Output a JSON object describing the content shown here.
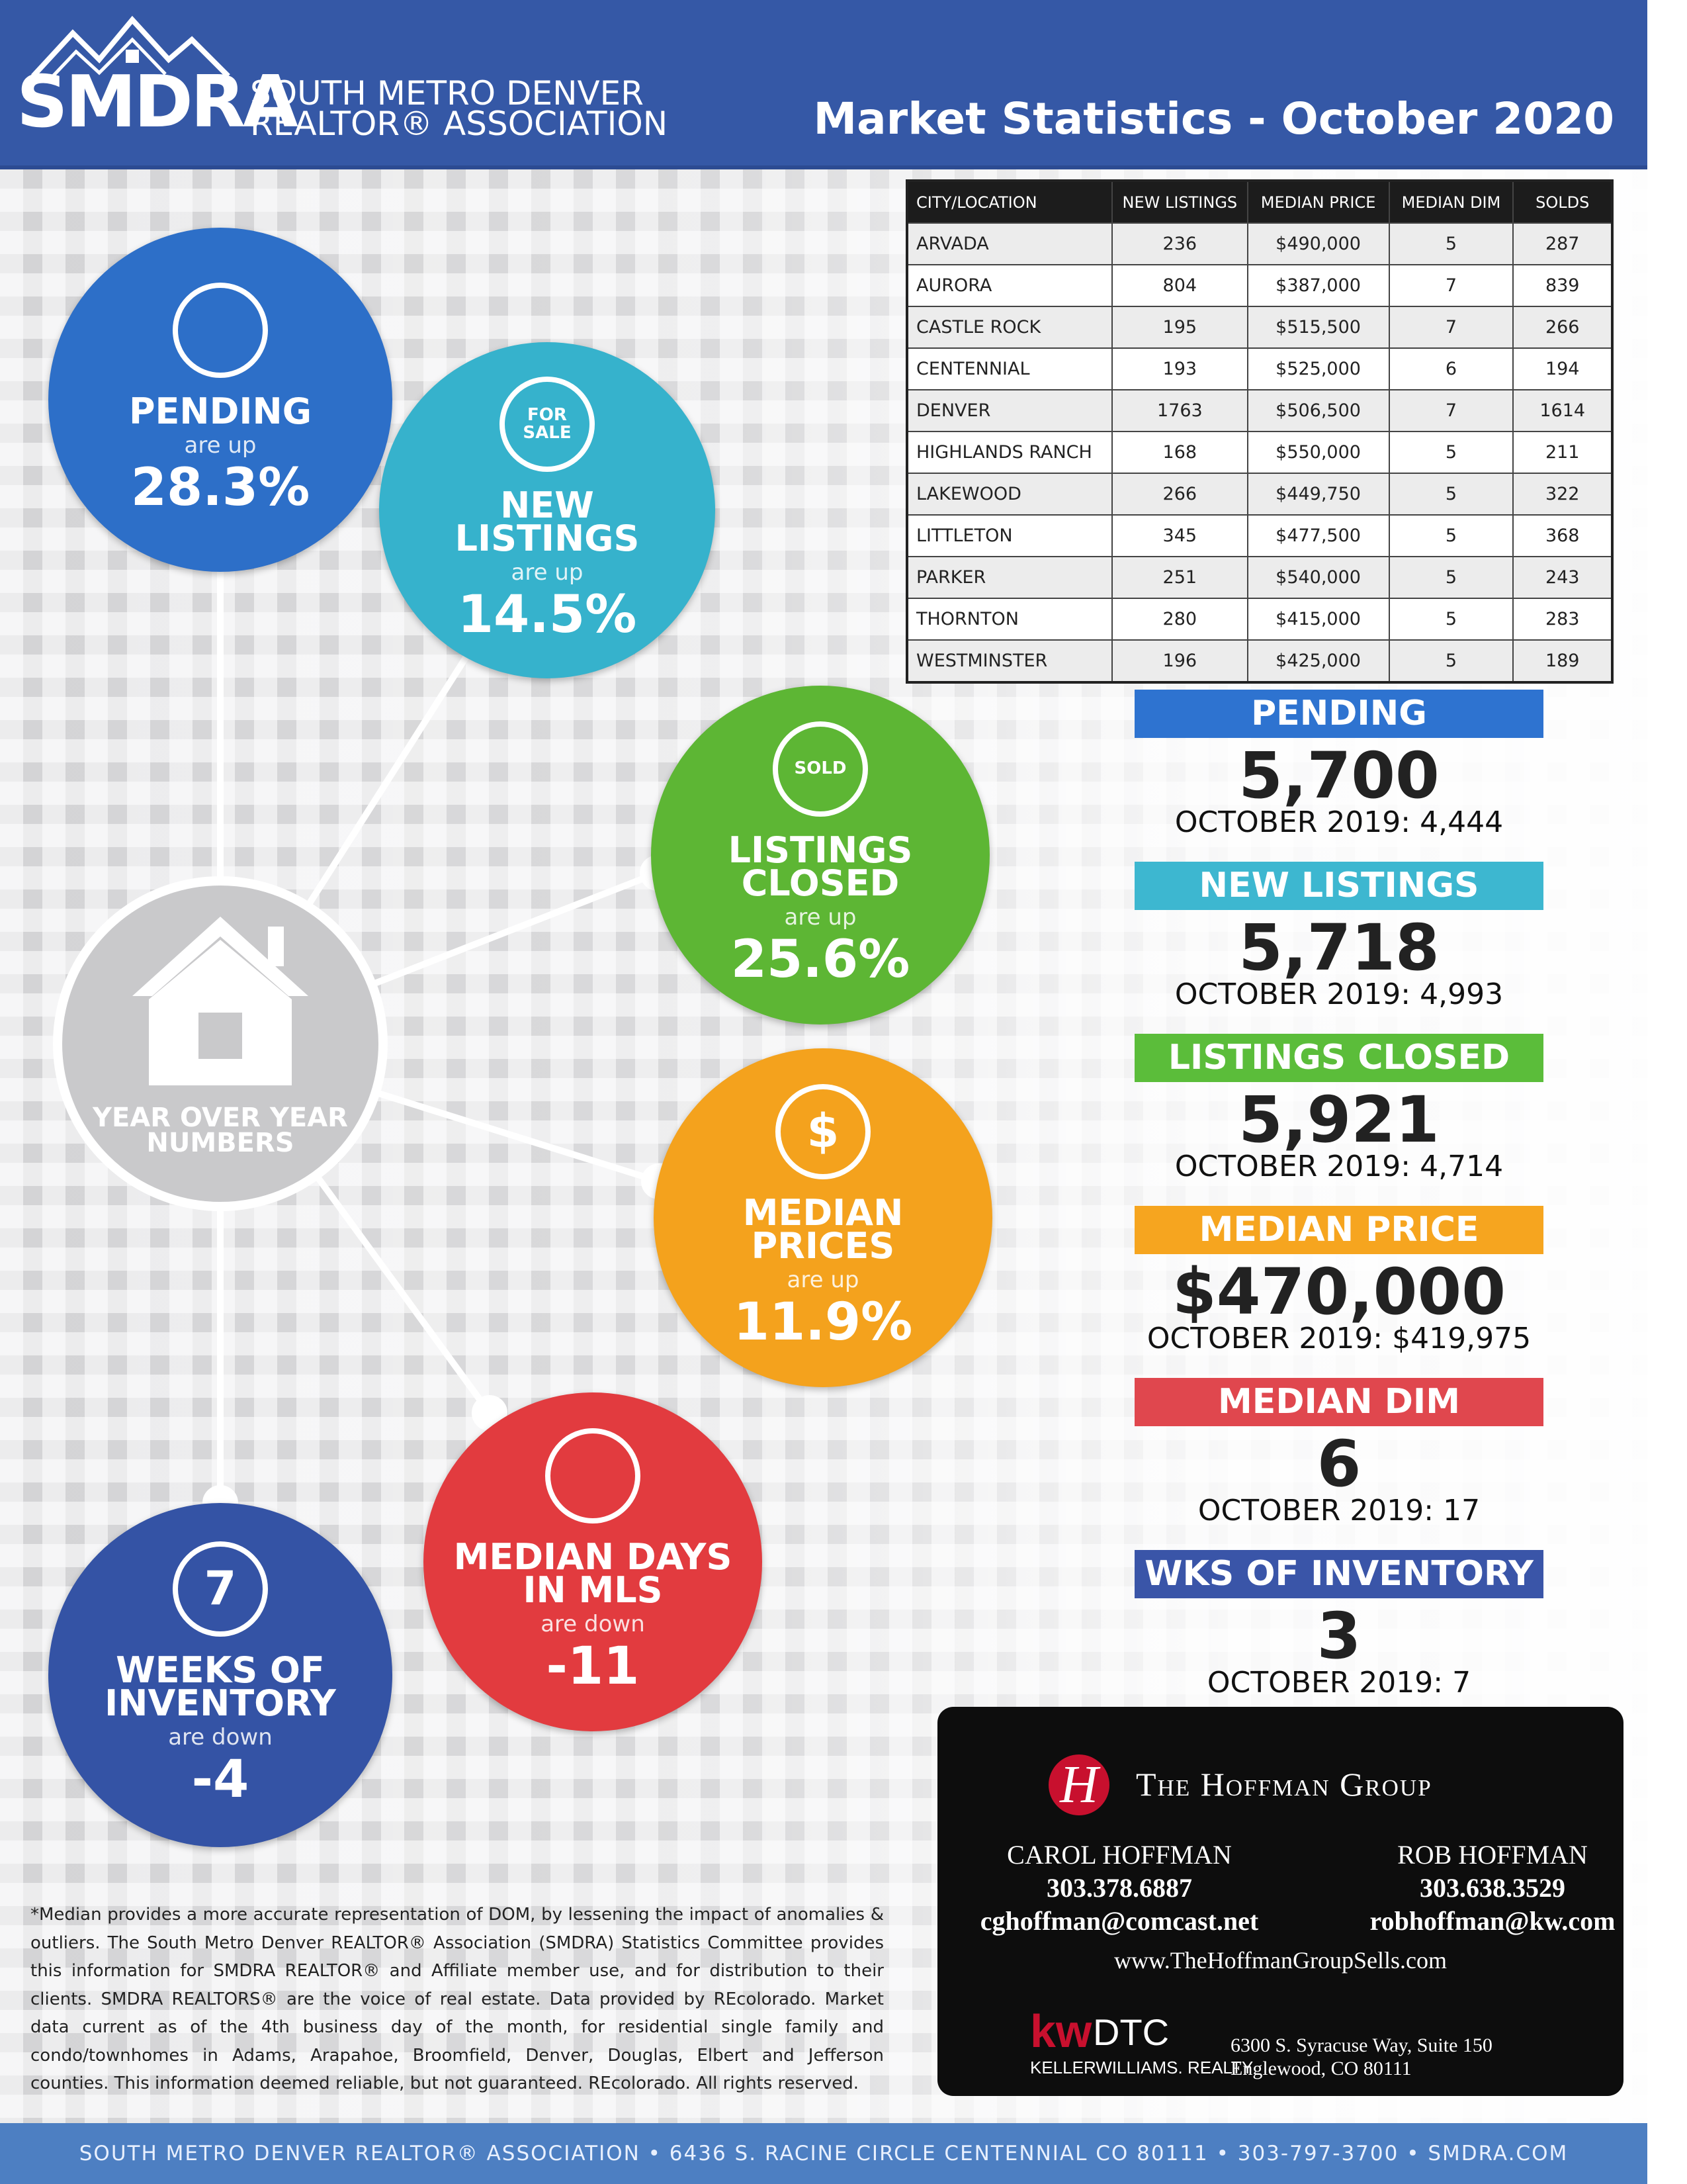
{
  "header": {
    "logo": "SMDRA",
    "org_line1": "SOUTH METRO DENVER",
    "org_line2": "REALTOR® ASSOCIATION",
    "title": "Market Statistics - October 2020"
  },
  "hub": {
    "lines": [
      "YEAR OVER YEAR",
      "NUMBERS"
    ]
  },
  "circles": [
    {
      "icon_text": [],
      "label_lines": [
        "PENDING"
      ],
      "direction": "are up",
      "change": "28.3%"
    },
    {
      "icon_text": [
        "FOR",
        "SALE"
      ],
      "label_lines": [
        "NEW",
        "LISTINGS"
      ],
      "direction": "are up",
      "change": "14.5%"
    },
    {
      "icon_text": [
        "SOLD"
      ],
      "label_lines": [
        "LISTINGS",
        "CLOSED"
      ],
      "direction": "are up",
      "change": "25.6%"
    },
    {
      "icon_text": [
        "$"
      ],
      "label_lines": [
        "MEDIAN",
        "PRICES"
      ],
      "direction": "are up",
      "change": "11.9%"
    },
    {
      "icon_text": [],
      "label_lines": [
        "MEDIAN DAYS",
        "IN MLS"
      ],
      "direction": "are down",
      "change": "-11"
    },
    {
      "icon_text": [
        "7"
      ],
      "label_lines": [
        "WEEKS OF",
        "INVENTORY"
      ],
      "direction": "are down",
      "change": "-4"
    }
  ],
  "table": {
    "columns": [
      "CITY/LOCATION",
      "NEW LISTINGS",
      "MEDIAN PRICE",
      "MEDIAN DIM",
      "SOLDS"
    ],
    "rows": [
      [
        "ARVADA",
        "236",
        "$490,000",
        "5",
        "287"
      ],
      [
        "AURORA",
        "804",
        "$387,000",
        "7",
        "839"
      ],
      [
        "CASTLE ROCK",
        "195",
        "$515,500",
        "7",
        "266"
      ],
      [
        "CENTENNIAL",
        "193",
        "$525,000",
        "6",
        "194"
      ],
      [
        "DENVER",
        "1763",
        "$506,500",
        "7",
        "1614"
      ],
      [
        "HIGHLANDS RANCH",
        "168",
        "$550,000",
        "5",
        "211"
      ],
      [
        "LAKEWOOD",
        "266",
        "$449,750",
        "5",
        "322"
      ],
      [
        "LITTLETON",
        "345",
        "$477,500",
        "5",
        "368"
      ],
      [
        "PARKER",
        "251",
        "$540,000",
        "5",
        "243"
      ],
      [
        "THORNTON",
        "280",
        "$415,000",
        "5",
        "283"
      ],
      [
        "WESTMINSTER",
        "196",
        "$425,000",
        "5",
        "189"
      ]
    ]
  },
  "stats": [
    {
      "label": "PENDING",
      "value": "5,700",
      "comparison": "OCTOBER 2019: 4,444"
    },
    {
      "label": "NEW LISTINGS",
      "value": "5,718",
      "comparison": "OCTOBER 2019: 4,993"
    },
    {
      "label": "LISTINGS CLOSED",
      "value": "5,921",
      "comparison": "OCTOBER 2019: 4,714"
    },
    {
      "label": "MEDIAN PRICE",
      "value": "$470,000",
      "comparison": "OCTOBER 2019: $419,975"
    },
    {
      "label": "MEDIAN DIM",
      "value": "6",
      "comparison": "OCTOBER 2019: 17"
    },
    {
      "label": "WKS OF INVENTORY",
      "value": "3",
      "comparison": "OCTOBER 2019: 7"
    }
  ],
  "card": {
    "logo_letter": "H",
    "group": "The Hoffman Group",
    "agents": [
      {
        "name": "CAROL HOFFMAN",
        "phone": "303.378.6887",
        "email": "cghoffman@comcast.net"
      },
      {
        "name": "ROB HOFFMAN",
        "phone": "303.638.3529",
        "email": "robhoffman@kw.com"
      }
    ],
    "website": "www.TheHoffmanGroupSells.com",
    "brokerage_logo": "kw",
    "brokerage_office": "DTC",
    "brokerage_name": "KELLERWILLIAMS. REALTY",
    "address_line1": "6300 S. Syracuse Way, Suite 150",
    "address_line2": "Englewood, CO 80111"
  },
  "footnote": "*Median provides a more accurate representation of DOM, by lessening the impact of anomalies & outliers. The South Metro Denver REALTOR® Association (SMDRA) Statistics Committee provides this information for SMDRA REALTOR® and Affiliate member use, and for distribution to their clients. SMDRA REALTORS® are the voice of real estate. Data provided by REcolorado. Market data current as of the 4th business day of the month, for residential single family and condo/townhomes in Adams, Arapahoe, Broomfield, Denver, Douglas, Elbert and Jefferson counties. This information deemed reliable, but not guaranteed. REcolorado. All rights reserved.",
  "footer": "SOUTH METRO DENVER REALTOR® ASSOCIATION • 6436 S. RACINE CIRCLE CENTENNIAL CO 80111 • 303-797-3700 • SMDRA.COM"
}
